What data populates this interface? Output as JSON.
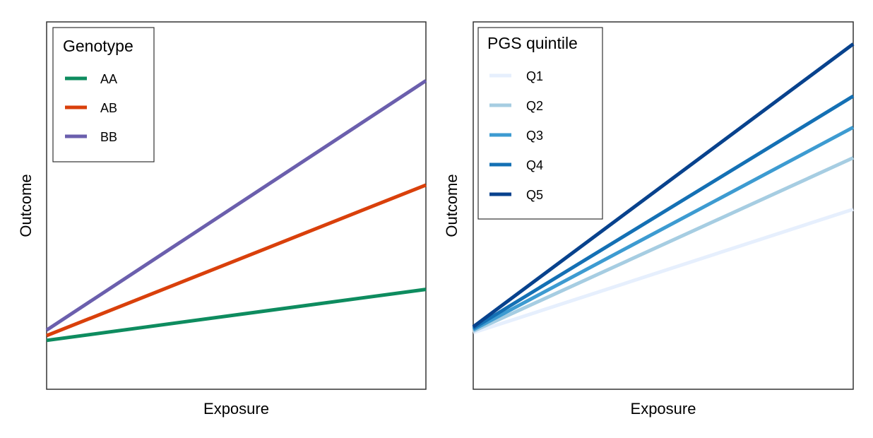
{
  "chart_data": [
    {
      "type": "line",
      "title": "",
      "xlabel": "Exposure",
      "ylabel": "Outcome",
      "x": [
        0,
        1
      ],
      "xlim": [
        0,
        1
      ],
      "ylim": [
        0,
        1
      ],
      "grid": false,
      "legend_title": "Genotype",
      "legend_position": "top-left",
      "series": [
        {
          "name": "AA",
          "color": "#0e8c5f",
          "values": [
            0.133,
            0.272
          ]
        },
        {
          "name": "AB",
          "color": "#d9400b",
          "values": [
            0.146,
            0.556
          ]
        },
        {
          "name": "BB",
          "color": "#6b5fad",
          "values": [
            0.161,
            0.84
          ]
        }
      ]
    },
    {
      "type": "line",
      "title": "",
      "xlabel": "Exposure",
      "ylabel": "Outcome",
      "x": [
        0,
        1
      ],
      "xlim": [
        0,
        1
      ],
      "ylim": [
        0,
        1
      ],
      "grid": false,
      "legend_title": "PGS quintile",
      "legend_position": "top-left",
      "series": [
        {
          "name": "Q1",
          "color": "#e6effd",
          "values": [
            0.154,
            0.49
          ]
        },
        {
          "name": "Q2",
          "color": "#a6cde2",
          "values": [
            0.158,
            0.63
          ]
        },
        {
          "name": "Q3",
          "color": "#3d9bd1",
          "values": [
            0.162,
            0.713
          ]
        },
        {
          "name": "Q4",
          "color": "#1470b4",
          "values": [
            0.166,
            0.798
          ]
        },
        {
          "name": "Q5",
          "color": "#08428d",
          "values": [
            0.17,
            0.94
          ]
        }
      ]
    }
  ]
}
